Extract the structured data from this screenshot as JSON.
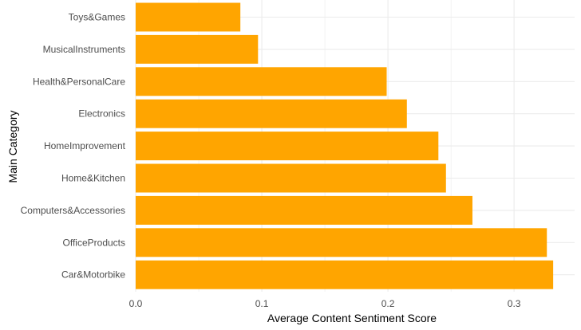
{
  "chart_data": {
    "type": "bar",
    "orientation": "horizontal",
    "title": "",
    "xlabel": "Average Content Sentiment Score",
    "ylabel": "Main Category",
    "categories": [
      "Toys&Games",
      "MusicalInstruments",
      "Health&PersonalCare",
      "Electronics",
      "HomeImprovement",
      "Home&Kitchen",
      "Computers&Accessories",
      "OfficeProducts",
      "Car&Motorbike"
    ],
    "values": [
      0.083,
      0.097,
      0.199,
      0.215,
      0.24,
      0.246,
      0.267,
      0.326,
      0.331
    ],
    "xlim": [
      0,
      0.348
    ],
    "xticks": [
      0.0,
      0.1,
      0.2,
      0.3
    ],
    "xtick_labels": [
      "0.0",
      "0.1",
      "0.2",
      "0.3"
    ],
    "grid": true,
    "legend": "none",
    "bar_color": "#FFA500",
    "grid_color": "#EBEBEB"
  }
}
